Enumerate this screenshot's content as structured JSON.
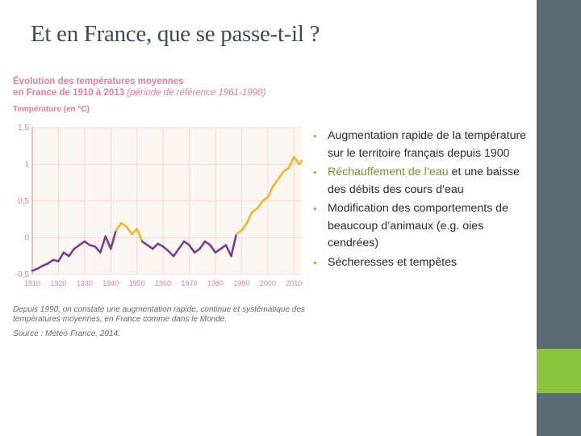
{
  "slide": {
    "title": "Et en France, que se passe-t-il ?",
    "colors": {
      "sidebar": "#5c6b73",
      "accent": "#8cc63f",
      "chart_pink": "#e07f9a",
      "line_purple": "#7a3f8c",
      "line_yellow": "#f2b629"
    }
  },
  "figure": {
    "title_line1": "Évolution des températures moyennes",
    "title_line2_main": "en France de 1910 à 2013",
    "title_line2_ref": "(période de référence 1961-1990)",
    "caption": "Depuis 1990, on constate une augmentation rapide, continue et systématique des températures moyennes, en France comme dans le Monde.",
    "source": "Source : Météo-France, 2014."
  },
  "chart_data": {
    "type": "line",
    "ylabel": "Température (en °C)",
    "xlabel": "",
    "xlim": [
      1910,
      2013
    ],
    "ylim": [
      -0.5,
      1.5
    ],
    "y_ticks": [
      "1,5",
      "1",
      "0,5",
      "0",
      "-0,5"
    ],
    "y_tick_values": [
      1.5,
      1,
      0.5,
      0,
      -0.5
    ],
    "x_ticks": [
      "1910",
      "1920",
      "1930",
      "1940",
      "1950",
      "1960",
      "1970",
      "1980",
      "1990",
      "2000",
      "2010"
    ],
    "x_tick_values": [
      1910,
      1920,
      1930,
      1940,
      1950,
      1960,
      1970,
      1980,
      1990,
      2000,
      2010
    ],
    "grid": true,
    "positive_color": "#f2b629",
    "negative_color": "#7a3f8c",
    "x": [
      1910,
      1912,
      1914,
      1916,
      1918,
      1920,
      1922,
      1924,
      1926,
      1928,
      1930,
      1932,
      1934,
      1936,
      1938,
      1940,
      1942,
      1944,
      1946,
      1948,
      1950,
      1952,
      1954,
      1956,
      1958,
      1960,
      1962,
      1964,
      1966,
      1968,
      1970,
      1972,
      1974,
      1976,
      1978,
      1980,
      1982,
      1984,
      1986,
      1988,
      1990,
      1992,
      1994,
      1996,
      1998,
      2000,
      2002,
      2004,
      2006,
      2008,
      2010,
      2012,
      2013
    ],
    "y": [
      -0.45,
      -0.42,
      -0.38,
      -0.35,
      -0.3,
      -0.32,
      -0.2,
      -0.25,
      -0.15,
      -0.1,
      -0.05,
      -0.1,
      -0.12,
      -0.2,
      0.02,
      -0.15,
      0.1,
      0.2,
      0.15,
      0.05,
      0.12,
      -0.05,
      -0.1,
      -0.15,
      -0.08,
      -0.12,
      -0.18,
      -0.25,
      -0.15,
      -0.05,
      -0.1,
      -0.2,
      -0.15,
      -0.05,
      -0.1,
      -0.2,
      -0.15,
      -0.1,
      -0.25,
      0.05,
      0.1,
      0.2,
      0.35,
      0.4,
      0.5,
      0.55,
      0.7,
      0.8,
      0.9,
      0.95,
      1.1,
      1.0,
      1.05
    ]
  },
  "bullets": [
    {
      "text": "Augmentation rapide de la température sur le territoire français depuis 1900"
    },
    {
      "highlight": "Réchauffement de l’eau",
      "text": " et une baisse des débits des cours d’eau"
    },
    {
      "text": "Modification des comportements de beaucoup d’animaux (e.g. oies cendrées)"
    },
    {
      "text": "Sécheresses et tempêtes"
    }
  ]
}
